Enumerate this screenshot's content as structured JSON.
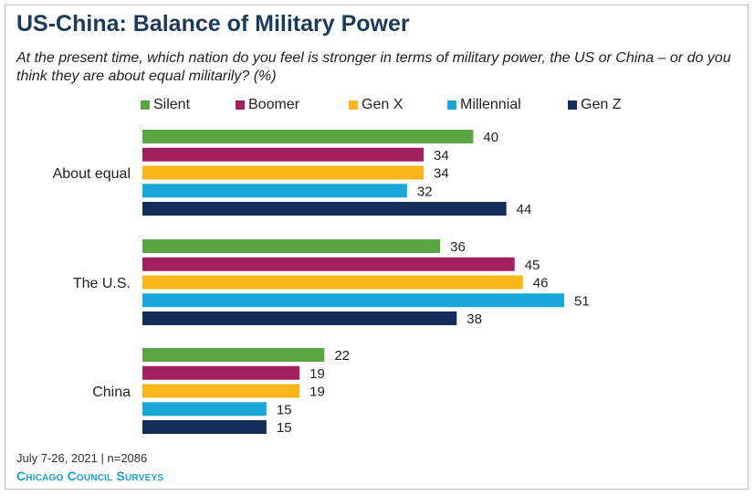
{
  "title": "US-China: Balance of Military Power",
  "subtitle": "At the present time, which nation do you feel is stronger in terms of military power, the US or China – or do you think they are about equal militarily? (%)",
  "footer": {
    "note": "July 7-26, 2021 | n=2086",
    "brand": "Chicago Council Surveys"
  },
  "chart_data": {
    "type": "bar",
    "orientation": "horizontal",
    "title": "US-China: Balance of Military Power",
    "categories": [
      "About equal",
      "The U.S.",
      "China"
    ],
    "series": [
      {
        "name": "Silent",
        "color": "#5aa544",
        "values": [
          40,
          36,
          22
        ]
      },
      {
        "name": "Boomer",
        "color": "#a3205f",
        "values": [
          34,
          45,
          19
        ]
      },
      {
        "name": "Gen X",
        "color": "#fbb61b",
        "values": [
          34,
          46,
          19
        ]
      },
      {
        "name": "Millennial",
        "color": "#1aa6d9",
        "values": [
          32,
          51,
          15
        ]
      },
      {
        "name": "Gen Z",
        "color": "#142e5b",
        "values": [
          44,
          38,
          15
        ]
      }
    ],
    "xlim": [
      0,
      52
    ],
    "grid": false,
    "legend_position": "top",
    "data_labels": true
  }
}
